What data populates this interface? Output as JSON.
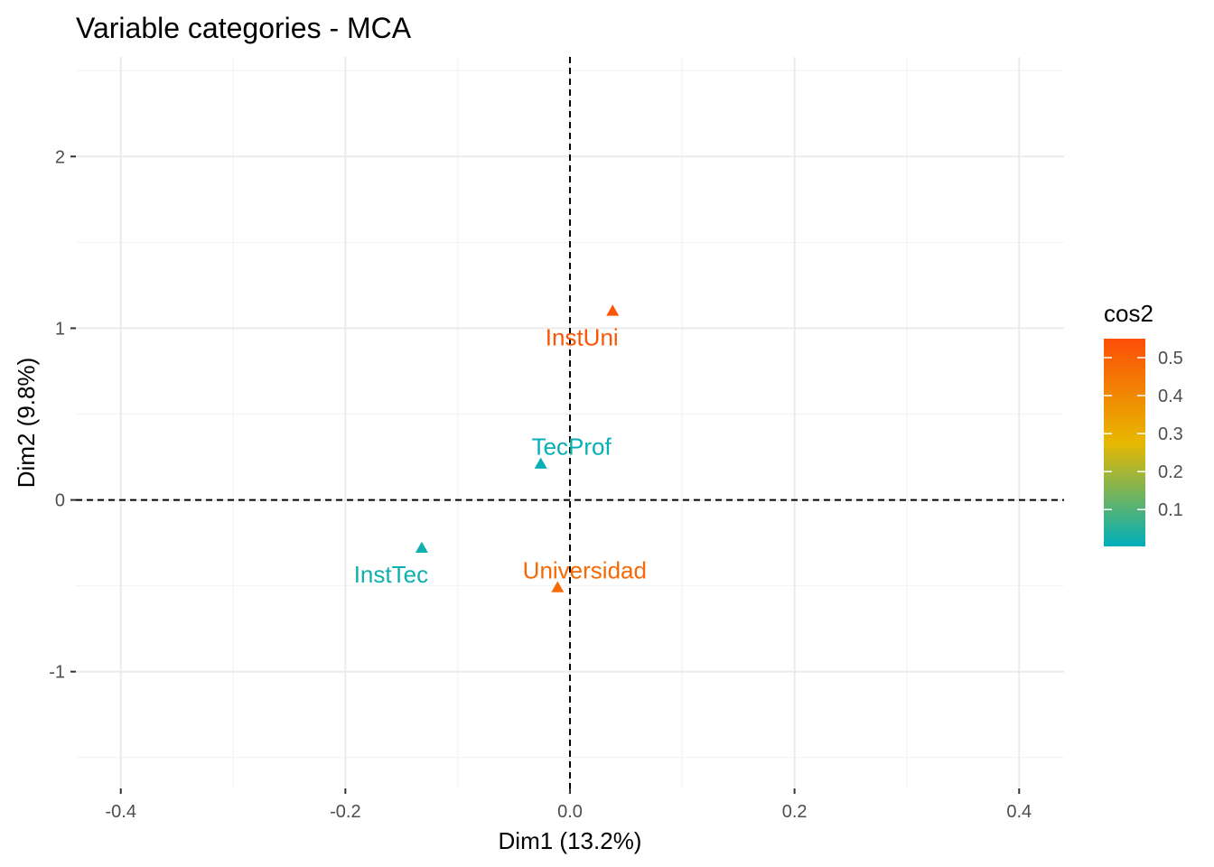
{
  "chart_data": {
    "type": "scatter",
    "title": "Variable categories - MCA",
    "xlabel": "Dim1 (13.2%)",
    "ylabel": "Dim2 (9.8%)",
    "xlim": [
      -0.44,
      0.44
    ],
    "ylim": [
      -1.68,
      2.58
    ],
    "x_ticks": [
      -0.4,
      -0.2,
      0.0,
      0.2,
      0.4
    ],
    "x_tick_labels": [
      "-0.4",
      "-0.2",
      "0.0",
      "0.2",
      "0.4"
    ],
    "y_ticks": [
      -1,
      0,
      1,
      2
    ],
    "y_tick_labels": [
      "-1",
      "0",
      "1",
      "2"
    ],
    "grid": true,
    "reference_lines": {
      "x": 0,
      "y": 0,
      "style": "dashed"
    },
    "points": [
      {
        "label": "InstUni",
        "x": 0.038,
        "y": 1.1,
        "cos2": 0.53
      },
      {
        "label": "TecProf",
        "x": -0.026,
        "y": 0.21,
        "cos2": 0.01
      },
      {
        "label": "InstTec",
        "x": -0.132,
        "y": -0.28,
        "cos2": 0.02
      },
      {
        "label": "Universidad",
        "x": -0.011,
        "y": -0.51,
        "cos2": 0.48
      }
    ],
    "legend": {
      "title": "cos2",
      "position": "right",
      "range": [
        0.003,
        0.55
      ],
      "ticks": [
        0.1,
        0.2,
        0.3,
        0.4,
        0.5
      ],
      "tick_labels": [
        "0.1",
        "0.2",
        "0.3",
        "0.4",
        "0.5"
      ],
      "colors": [
        "#00AFBB",
        "#E7B800",
        "#FC4E07"
      ]
    },
    "marker": "triangle"
  }
}
